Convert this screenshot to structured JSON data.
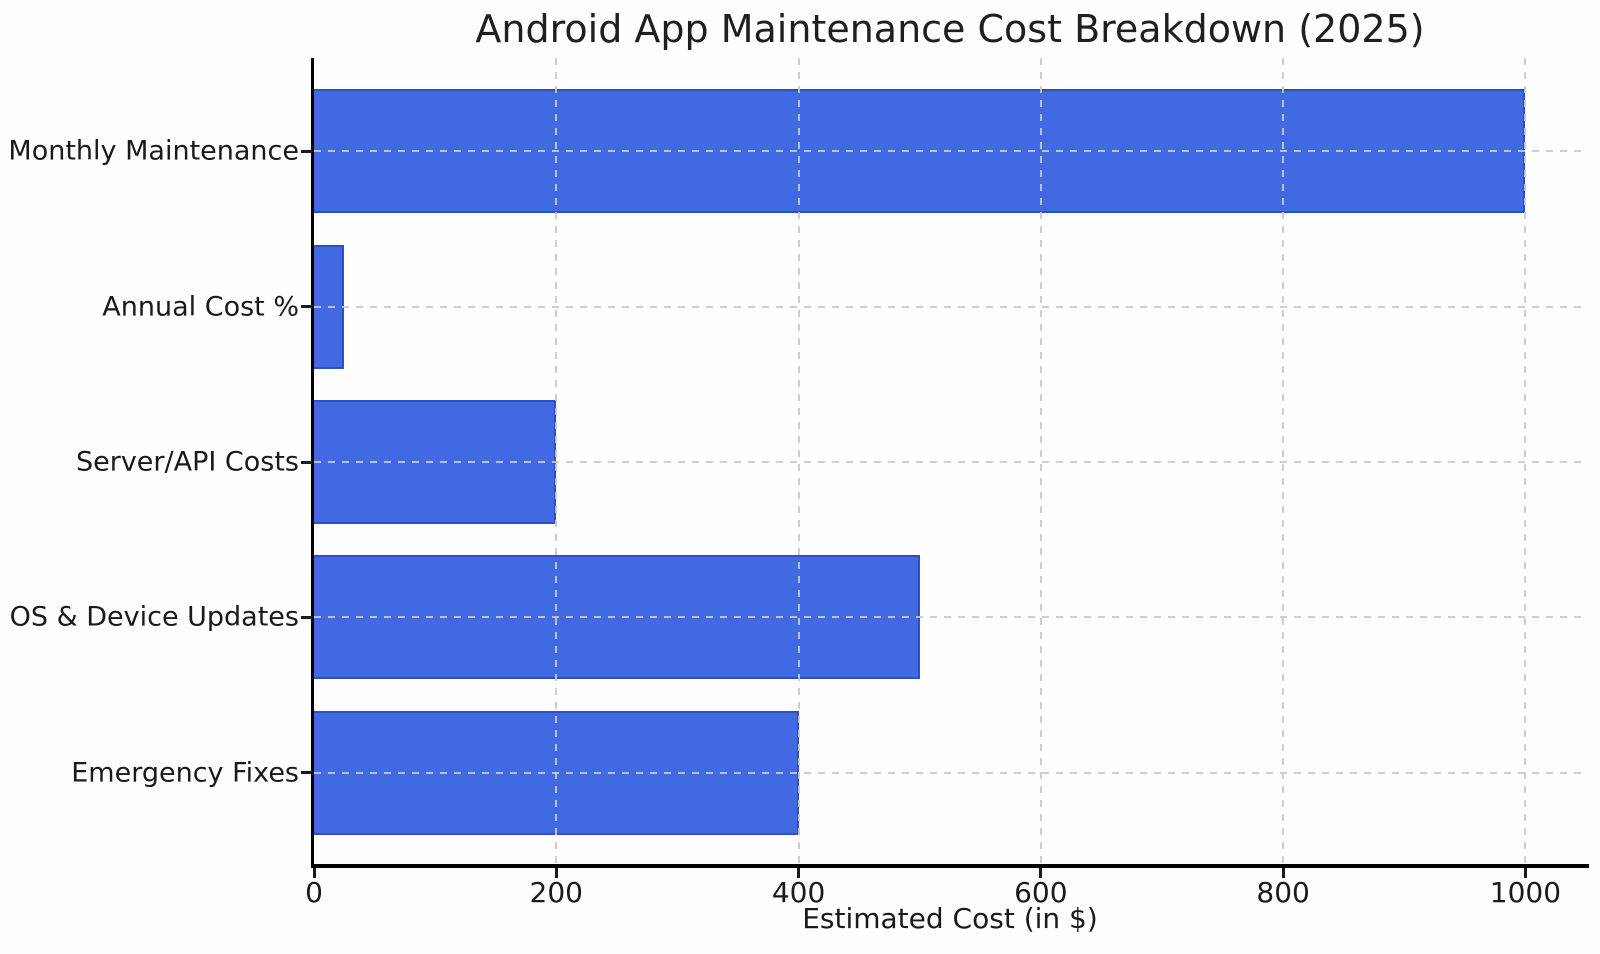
{
  "chart_data": {
    "type": "bar",
    "orientation": "horizontal",
    "title": "Android App Maintenance Cost Breakdown (2025)",
    "xlabel": "Estimated Cost (in $)",
    "ylabel": "",
    "categories": [
      "Monthly Maintenance",
      "Annual Cost %",
      "Server/API Costs",
      "OS & Device Updates",
      "Emergency Fixes"
    ],
    "values": [
      1000,
      25,
      200,
      500,
      400
    ],
    "xticks": [
      0,
      200,
      400,
      600,
      800,
      1000
    ],
    "xlim": [
      0,
      1050
    ],
    "grid": true,
    "grid_style": "dashed",
    "legend": null,
    "bar_color": "#4169E1",
    "bar_edge_color": "#2e50c5",
    "grid_color": "#c9c9c9",
    "axis_color": "#000000",
    "text_color": "#1a1a1a",
    "background_color": "#fefefe"
  }
}
